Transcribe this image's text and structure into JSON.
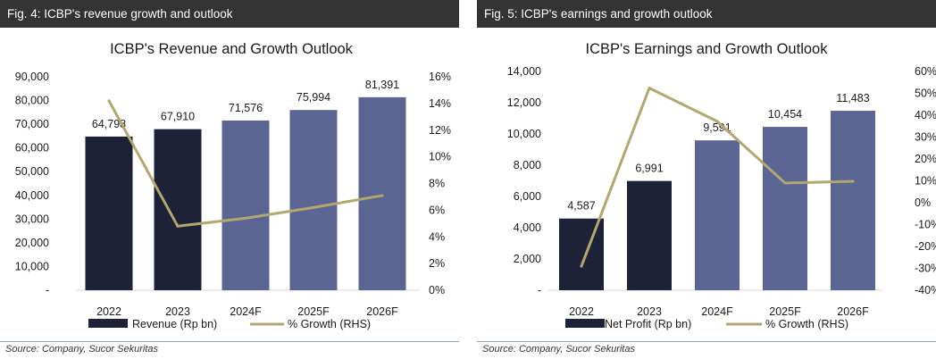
{
  "colors": {
    "actual_bar": "#1d2239",
    "forecast_bar": "#5b6594",
    "growth_line": "#b3a66e",
    "header_bg": "#333333"
  },
  "figures": [
    {
      "header": "Fig. 4: ICBP's revenue growth and outlook",
      "source": "Source: Company, Sucor Sekuritas"
    },
    {
      "header": "Fig. 5: ICBP's earnings and growth outlook",
      "source": "Source: Company, Sucor Sekuritas"
    }
  ],
  "chart_data": [
    {
      "type": "bar",
      "title": "ICBP's Revenue and Growth Outlook",
      "categories": [
        "2022",
        "2023",
        "2024F",
        "2025F",
        "2026F"
      ],
      "forecast_flags": [
        false,
        false,
        true,
        true,
        true
      ],
      "series": [
        {
          "name": "Revenue (Rp bn)",
          "type": "bar",
          "axis": "left",
          "values": [
            64798,
            67910,
            71576,
            75994,
            81391
          ],
          "labels": [
            "64,798",
            "67,910",
            "71,576",
            "75,994",
            "81,391"
          ]
        },
        {
          "name": "% Growth (RHS)",
          "type": "line",
          "axis": "right",
          "values": [
            14.2,
            4.8,
            5.4,
            6.2,
            7.1
          ]
        }
      ],
      "ylim": [
        0,
        90000
      ],
      "y_ticks": [
        "-",
        "10,000",
        "20,000",
        "30,000",
        "40,000",
        "50,000",
        "60,000",
        "70,000",
        "80,000",
        "90,000"
      ],
      "y2lim": [
        0,
        16
      ],
      "y2_ticks": [
        "0%",
        "2%",
        "4%",
        "6%",
        "8%",
        "10%",
        "12%",
        "14%",
        "16%"
      ],
      "legend_position": "bottom",
      "grid": false
    },
    {
      "type": "bar",
      "title": "ICBP's Earnings and Growth Outlook",
      "categories": [
        "2022",
        "2023",
        "2024F",
        "2025F",
        "2026F"
      ],
      "forecast_flags": [
        false,
        false,
        true,
        true,
        true
      ],
      "series": [
        {
          "name": "Net Profit (Rp bn)",
          "type": "bar",
          "axis": "left",
          "values": [
            4587,
            6991,
            9591,
            10454,
            11483
          ],
          "labels": [
            "4,587",
            "6,991",
            "9,591",
            "10,454",
            "11,483"
          ]
        },
        {
          "name": "% Growth (RHS)",
          "type": "line",
          "axis": "right",
          "values": [
            -29,
            52.4,
            37.2,
            9,
            9.8
          ]
        }
      ],
      "ylim": [
        0,
        14000
      ],
      "y_ticks": [
        "-",
        "2,000",
        "4,000",
        "6,000",
        "8,000",
        "10,000",
        "12,000",
        "14,000"
      ],
      "y2lim": [
        -40,
        60
      ],
      "y2_ticks": [
        "-40%",
        "-30%",
        "-20%",
        "-10%",
        "0%",
        "10%",
        "20%",
        "30%",
        "40%",
        "50%",
        "60%"
      ],
      "legend_position": "bottom",
      "grid": false
    }
  ]
}
